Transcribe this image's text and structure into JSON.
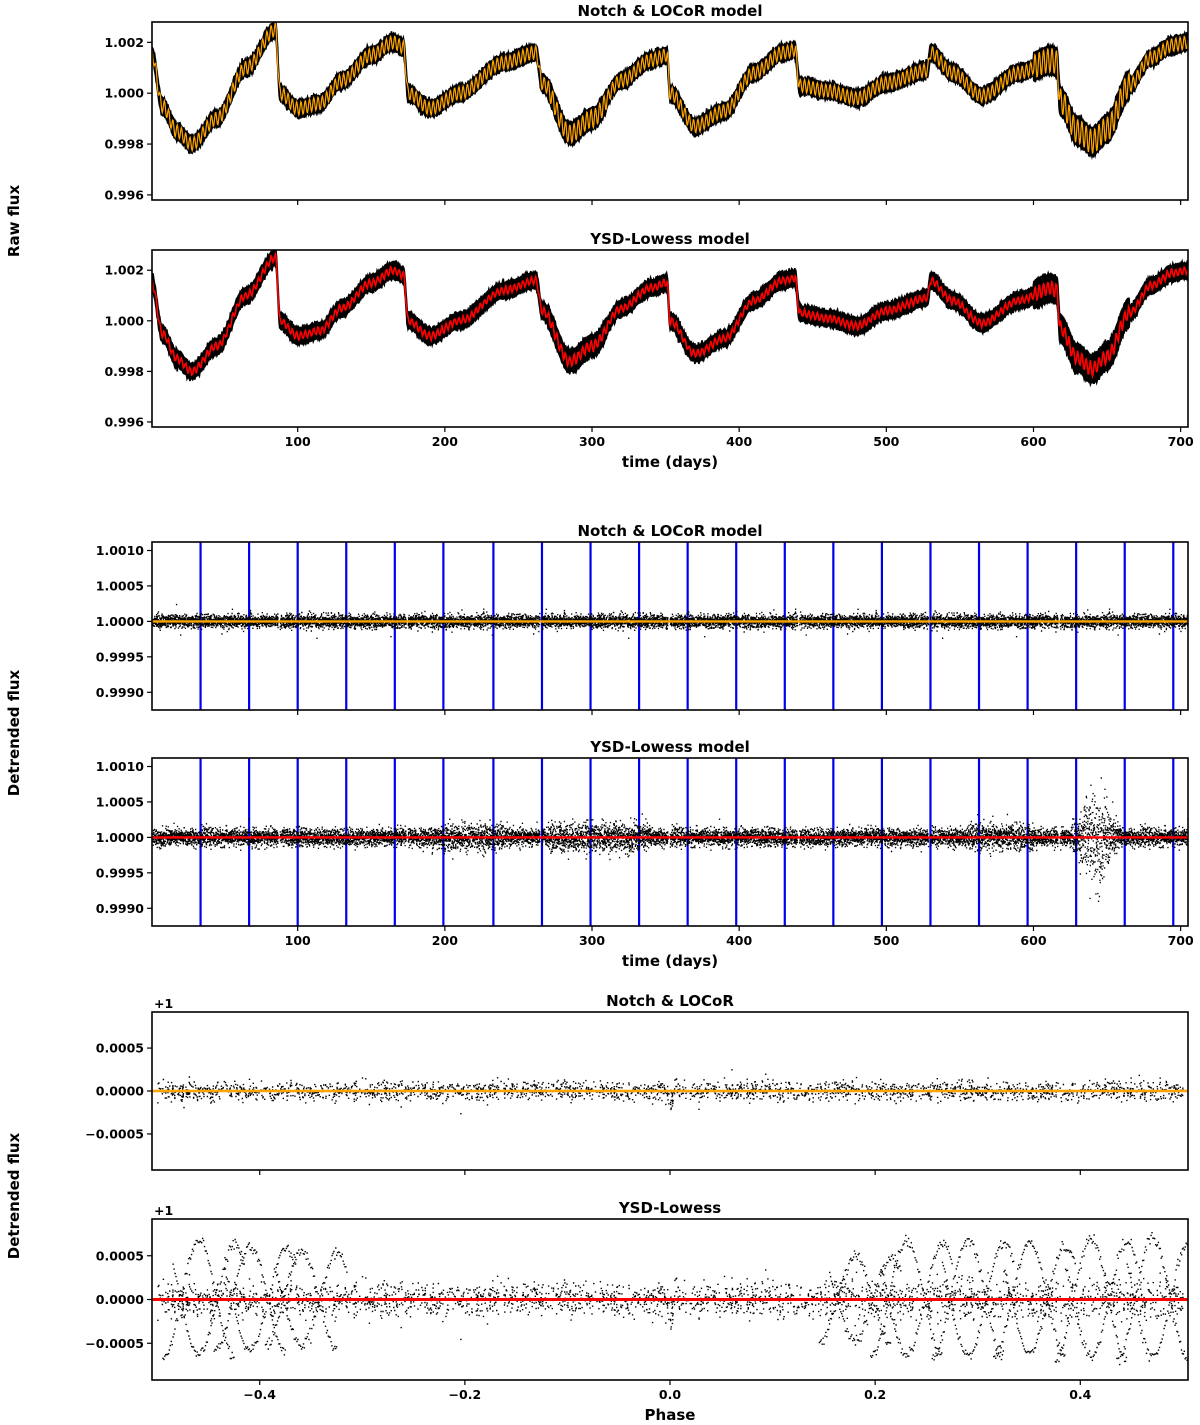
{
  "y_labels": [
    "Raw flux",
    "Detrended flux",
    "Detrended flux"
  ],
  "colors": {
    "notch": "#ffa500",
    "ysd": "#ff0000",
    "transit_lines": "#0000ee",
    "data": "#000000"
  },
  "chart_data": [
    {
      "type": "line",
      "title": "Notch & LOCoR model",
      "ylim": [
        0.9958,
        1.0028
      ],
      "xlim": [
        1,
        705
      ],
      "yticks": [
        0.996,
        0.998,
        1.0,
        1.002
      ],
      "ytick_labels": [
        "0.996",
        "0.998",
        "1.000",
        "1.002"
      ],
      "xticks": [
        100,
        200,
        300,
        400,
        500,
        600,
        700
      ],
      "xtick_labels": [],
      "model_color": "#ffa500",
      "xlabel": "",
      "series": [
        {
          "name": "raw data (black)",
          "x": [],
          "y": []
        },
        {
          "name": "model",
          "x": [],
          "y": []
        }
      ]
    },
    {
      "type": "line",
      "title": "YSD-Lowess model",
      "ylim": [
        0.9958,
        1.0028
      ],
      "xlim": [
        1,
        705
      ],
      "yticks": [
        0.996,
        0.998,
        1.0,
        1.002
      ],
      "ytick_labels": [
        "0.996",
        "0.998",
        "1.000",
        "1.002"
      ],
      "xticks": [
        100,
        200,
        300,
        400,
        500,
        600,
        700
      ],
      "xtick_labels": [
        "100",
        "200",
        "300",
        "400",
        "500",
        "600",
        "700"
      ],
      "model_color": "#ff0000",
      "xlabel": "time (days)"
    },
    {
      "type": "scatter",
      "title": "Notch & LOCoR model",
      "ylim": [
        0.99875,
        1.00112
      ],
      "xlim": [
        1,
        705
      ],
      "yticks": [
        0.999,
        0.9995,
        1.0,
        1.0005,
        1.001
      ],
      "ytick_labels": [
        "0.9990",
        "0.9995",
        "1.0000",
        "1.0005",
        "1.0010"
      ],
      "xticks": [
        100,
        200,
        300,
        400,
        500,
        600,
        700
      ],
      "xtick_labels": [],
      "model_color": "#ffa500",
      "xlabel": "",
      "transit_times": [
        34,
        67,
        100,
        133,
        166,
        199,
        233,
        266,
        299,
        332,
        365,
        398,
        431,
        464,
        497,
        530,
        563,
        596,
        629,
        662,
        695
      ]
    },
    {
      "type": "scatter",
      "title": "YSD-Lowess model",
      "ylim": [
        0.99875,
        1.00112
      ],
      "xlim": [
        1,
        705
      ],
      "yticks": [
        0.999,
        0.9995,
        1.0,
        1.0005,
        1.001
      ],
      "ytick_labels": [
        "0.9990",
        "0.9995",
        "1.0000",
        "1.0005",
        "1.0010"
      ],
      "xticks": [
        100,
        200,
        300,
        400,
        500,
        600,
        700
      ],
      "xtick_labels": [
        "100",
        "200",
        "300",
        "400",
        "500",
        "600",
        "700"
      ],
      "model_color": "#ff0000",
      "xlabel": "time (days)",
      "transit_times": [
        34,
        67,
        100,
        133,
        166,
        199,
        233,
        266,
        299,
        332,
        365,
        398,
        431,
        464,
        497,
        530,
        563,
        596,
        629,
        662,
        695
      ]
    },
    {
      "type": "scatter",
      "title": "Notch & LOCoR",
      "offset_label": "+1",
      "ylim": [
        -0.00092,
        0.00092
      ],
      "xlim": [
        -0.505,
        0.505
      ],
      "yticks": [
        -0.0005,
        0.0,
        0.0005
      ],
      "ytick_labels": [
        "−0.0005",
        "0.0000",
        "0.0005"
      ],
      "xticks": [
        -0.4,
        -0.2,
        0.0,
        0.2,
        0.4
      ],
      "xtick_labels": [],
      "model_color": "#ffa500",
      "xlabel": ""
    },
    {
      "type": "scatter",
      "title": "YSD-Lowess",
      "offset_label": "+1",
      "ylim": [
        -0.00092,
        0.00092
      ],
      "xlim": [
        -0.505,
        0.505
      ],
      "yticks": [
        -0.0005,
        0.0,
        0.0005
      ],
      "ytick_labels": [
        "−0.0005",
        "0.0000",
        "0.0005"
      ],
      "xticks": [
        -0.4,
        -0.2,
        0.0,
        0.2,
        0.4
      ],
      "xtick_labels": [
        "−0.4",
        "−0.2",
        "0.0",
        "0.2",
        "0.4"
      ],
      "model_color": "#ff0000",
      "xlabel": "Phase"
    }
  ]
}
